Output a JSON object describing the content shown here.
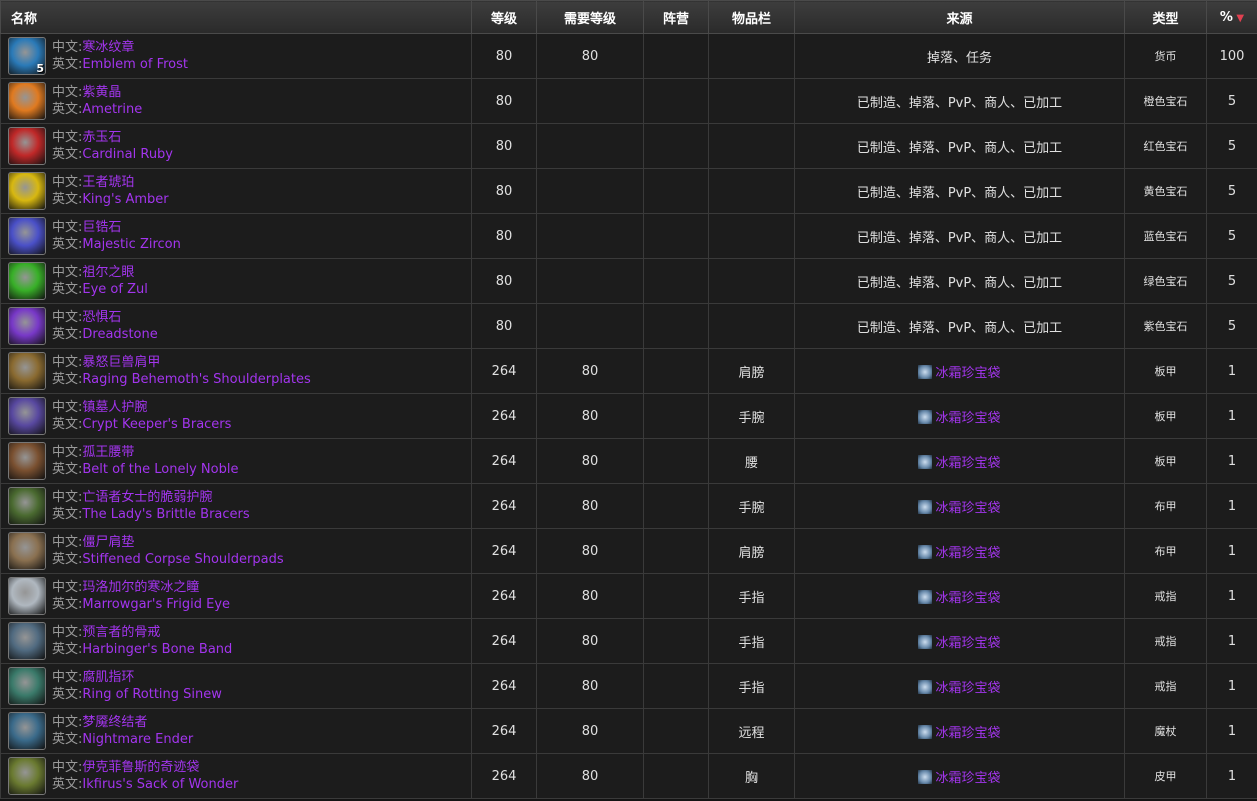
{
  "table": {
    "header": [
      "名称",
      "等级",
      "需要等级",
      "阵营",
      "物品栏",
      "来源",
      "类型",
      "%"
    ],
    "labels": {
      "zh": "中文:",
      "en": "英文:"
    },
    "rows": [
      {
        "zh": "寒冰纹章",
        "en": "Emblem of Frost",
        "icon_count": 5,
        "level": 80,
        "req": 80,
        "faction": null,
        "slot": null,
        "source": "掉落、任务",
        "type": "货币",
        "pct": 100
      },
      {
        "zh": "紫黄晶",
        "en": "Ametrine",
        "level": 80,
        "req": null,
        "faction": null,
        "slot": null,
        "source": "已制造、掉落、PvP、商人、已加工",
        "type": "橙色宝石",
        "pct": 5
      },
      {
        "zh": "赤玉石",
        "en": "Cardinal Ruby",
        "level": 80,
        "req": null,
        "faction": null,
        "slot": null,
        "source": "已制造、掉落、PvP、商人、已加工",
        "type": "红色宝石",
        "pct": 5
      },
      {
        "zh": "王者琥珀",
        "en": "King's Amber",
        "level": 80,
        "req": null,
        "faction": null,
        "slot": null,
        "source": "已制造、掉落、PvP、商人、已加工",
        "type": "黄色宝石",
        "pct": 5
      },
      {
        "zh": "巨锆石",
        "en": "Majestic Zircon",
        "level": 80,
        "req": null,
        "faction": null,
        "slot": null,
        "source": "已制造、掉落、PvP、商人、已加工",
        "type": "蓝色宝石",
        "pct": 5
      },
      {
        "zh": "祖尔之眼",
        "en": "Eye of Zul",
        "level": 80,
        "req": null,
        "faction": null,
        "slot": null,
        "source": "已制造、掉落、PvP、商人、已加工",
        "type": "绿色宝石",
        "pct": 5
      },
      {
        "zh": "恐惧石",
        "en": "Dreadstone",
        "level": 80,
        "req": null,
        "faction": null,
        "slot": null,
        "source": "已制造、掉落、PvP、商人、已加工",
        "type": "紫色宝石",
        "pct": 5
      },
      {
        "zh": "暴怒巨兽肩甲",
        "en": "Raging Behemoth's Shoulderplates",
        "level": 264,
        "req": 80,
        "faction": null,
        "slot": "肩膀",
        "source_link": "冰霜珍宝袋",
        "type": "板甲",
        "pct": 1
      },
      {
        "zh": "镇墓人护腕",
        "en": "Crypt Keeper's Bracers",
        "level": 264,
        "req": 80,
        "faction": null,
        "slot": "手腕",
        "source_link": "冰霜珍宝袋",
        "type": "板甲",
        "pct": 1
      },
      {
        "zh": "孤王腰带",
        "en": "Belt of the Lonely Noble",
        "level": 264,
        "req": 80,
        "faction": null,
        "slot": "腰",
        "source_link": "冰霜珍宝袋",
        "type": "板甲",
        "pct": 1
      },
      {
        "zh": "亡语者女士的脆弱护腕",
        "en": "The Lady's Brittle Bracers",
        "level": 264,
        "req": 80,
        "faction": null,
        "slot": "手腕",
        "source_link": "冰霜珍宝袋",
        "type": "布甲",
        "pct": 1
      },
      {
        "zh": "僵尸肩垫",
        "en": "Stiffened Corpse Shoulderpads",
        "level": 264,
        "req": 80,
        "faction": null,
        "slot": "肩膀",
        "source_link": "冰霜珍宝袋",
        "type": "布甲",
        "pct": 1
      },
      {
        "zh": "玛洛加尔的寒冰之瞳",
        "en": "Marrowgar's Frigid Eye",
        "level": 264,
        "req": 80,
        "faction": null,
        "slot": "手指",
        "source_link": "冰霜珍宝袋",
        "type": "戒指",
        "pct": 1
      },
      {
        "zh": "预言者的骨戒",
        "en": "Harbinger's Bone Band",
        "level": 264,
        "req": 80,
        "faction": null,
        "slot": "手指",
        "source_link": "冰霜珍宝袋",
        "type": "戒指",
        "pct": 1
      },
      {
        "zh": "腐肌指环",
        "en": "Ring of Rotting Sinew",
        "level": 264,
        "req": 80,
        "faction": null,
        "slot": "手指",
        "source_link": "冰霜珍宝袋",
        "type": "戒指",
        "pct": 1
      },
      {
        "zh": "梦魇终结者",
        "en": "Nightmare Ender",
        "level": 264,
        "req": 80,
        "faction": null,
        "slot": "远程",
        "source_link": "冰霜珍宝袋",
        "type": "魔杖",
        "pct": 1
      },
      {
        "zh": "伊克菲鲁斯的奇迹袋",
        "en": "Ikfirus's Sack of Wonder",
        "level": 264,
        "req": 80,
        "faction": null,
        "slot": "胸",
        "source_link": "冰霜珍宝袋",
        "type": "皮甲",
        "pct": 1
      }
    ]
  }
}
